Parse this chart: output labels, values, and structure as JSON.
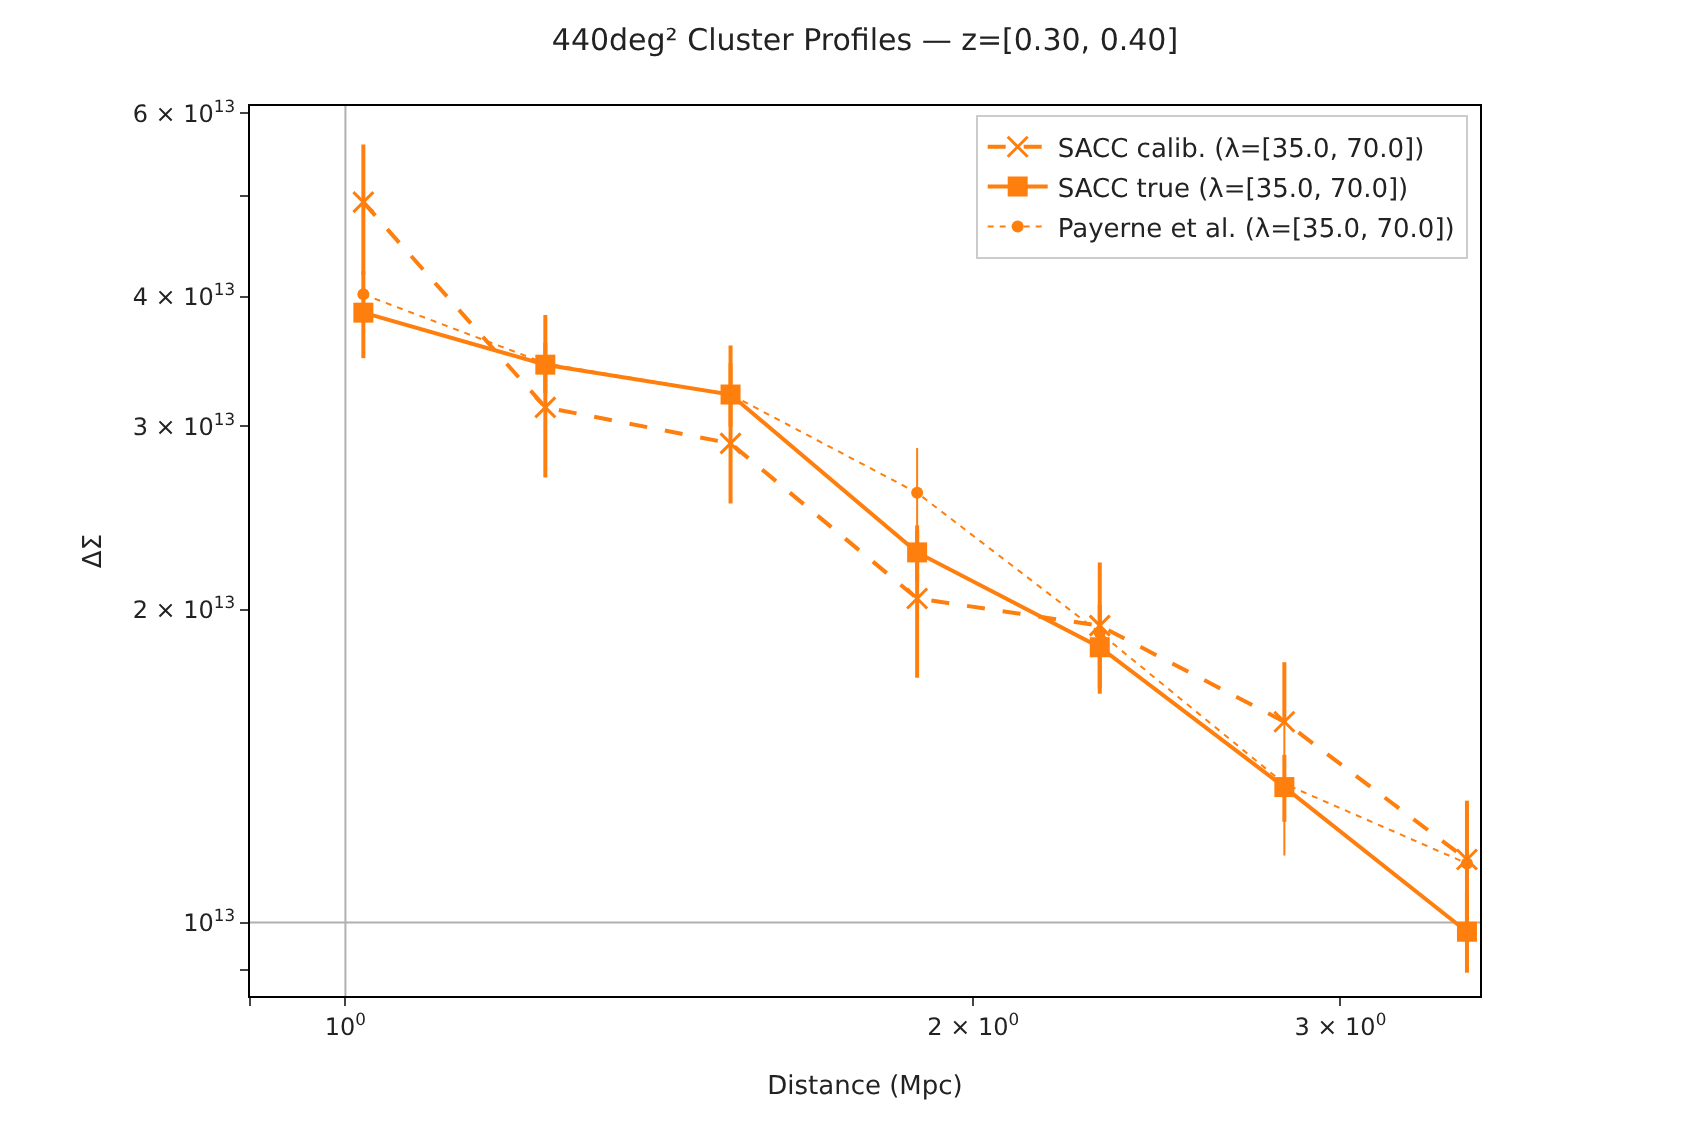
{
  "chart_data": {
    "type": "line",
    "title": "440deg² Cluster Profiles — z=[0.30, 0.40]",
    "xlabel": "Distance (Mpc)",
    "ylabel": "ΔΣ",
    "log": "xy",
    "grid": false,
    "legend": "top right",
    "x": [
      1.02,
      1.247,
      1.53,
      1.88,
      2.3,
      2.82,
      3.45
    ],
    "xlim": [
      0.9,
      3.5
    ],
    "xticks": [
      {
        "value": 0.9,
        "label": null
      },
      {
        "value": 1,
        "label": "10$^{0}$"
      },
      {
        "value": 2,
        "label": "2 × 10$^{0}$"
      },
      {
        "value": 3,
        "label": "3 × 10$^{0}$"
      }
    ],
    "ylim": [
      8500000000000.0,
      61000000000000.0
    ],
    "yticks": [
      {
        "value": 9000000000000.0,
        "label": null
      },
      {
        "value": 10000000000000.0,
        "label": "10$^{13}$"
      },
      {
        "value": 20000000000000.0,
        "label": "2 × 10$^{13}$"
      },
      {
        "value": 30000000000000.0,
        "label": "3 × 10$^{13}$"
      },
      {
        "value": 40000000000000.0,
        "label": "4 × 10$^{13}$"
      },
      {
        "value": 50000000000000.0,
        "label": null
      },
      {
        "value": 60000000000000.0,
        "label": "6 × 10$^{13}$"
      }
    ],
    "ref_lines": [
      {
        "axis": "x",
        "value": 1,
        "color": "#b0b0b0"
      },
      {
        "axis": "y",
        "value": 10000000000000.0,
        "color": "#b0b0b0"
      }
    ],
    "series": [
      {
        "name": "SACC calib. (λ=[35.0, 70.0])",
        "color": "#ff7f0e",
        "line_style": "dashed",
        "marker": "cross",
        "values": [
          49300000000000.0,
          31300000000000.0,
          28900000000000.0,
          20500000000000.0,
          19300000000000.0,
          15600000000000.0,
          11500000000000.0
        ],
        "errors": [
          [
            42000000000000.0,
            56000000000000.0
          ],
          [
            26800000000000.0,
            38400000000000.0
          ],
          [
            25300000000000.0,
            35900000000000.0
          ],
          [
            17200000000000.0,
            23800000000000.0
          ],
          [
            16800000000000.0,
            22200000000000.0
          ],
          [
            15600000000000.0,
            17800000000000.0
          ],
          [
            9900000000000.0,
            13100000000000.0
          ]
        ]
      },
      {
        "name": "SACC true (λ=[35.0, 70.0])",
        "color": "#ff7f0e",
        "line_style": "solid",
        "marker": "square",
        "values": [
          38600000000000.0,
          34400000000000.0,
          32200000000000.0,
          22700000000000.0,
          18400000000000.0,
          13500000000000.0,
          9800000000000.0
        ],
        "errors": [
          [
            34900000000000.0,
            42300000000000.0
          ],
          [
            32300000000000.0,
            36100000000000.0
          ],
          [
            30000000000000.0,
            34500000000000.0
          ],
          [
            21300000000000.0,
            24100000000000.0
          ],
          [
            16600000000000.0,
            20200000000000.0
          ],
          [
            12500000000000.0,
            14500000000000.0
          ],
          [
            8950000000000.0,
            10700000000000.0
          ]
        ]
      },
      {
        "name": "Payerne et al. (λ=[35.0, 70.0])",
        "color": "#ff7f0e",
        "line_style": "dotted",
        "marker": "circle",
        "values": [
          40200000000000.0,
          34500000000000.0,
          32200000000000.0,
          25900000000000.0,
          19000000000000.0,
          13600000000000.0,
          11400000000000.0
        ],
        "errors": [
          [
            36000000000000.0,
            44000000000000.0
          ],
          [
            32000000000000.0,
            37000000000000.0
          ],
          [
            30000000000000.0,
            34500000000000.0
          ],
          [
            23200000000000.0,
            28600000000000.0
          ],
          [
            17500000000000.0,
            20500000000000.0
          ],
          [
            11600000000000.0,
            15600000000000.0
          ],
          [
            10000000000000.0,
            12800000000000.0
          ]
        ]
      }
    ]
  }
}
